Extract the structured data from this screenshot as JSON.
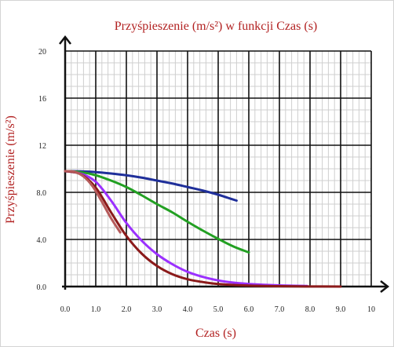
{
  "chart_data": {
    "type": "line",
    "title": "Przyśpieszenie (m/s²) w funkcji Czas (s)",
    "xlabel": "Czas (s)",
    "ylabel": "Przyśpieszenie (m/s²)",
    "xlim": [
      0,
      10
    ],
    "ylim": [
      0,
      20
    ],
    "x_ticks": [
      "0.0",
      "1.0",
      "2.0",
      "3.0",
      "4.0",
      "5.0",
      "6.0",
      "7.0",
      "8.0",
      "9.0",
      "10"
    ],
    "y_ticks": [
      "0.0",
      "4.0",
      "8.0",
      "12",
      "16",
      "20"
    ],
    "grid": true,
    "series": [
      {
        "color": "#1f2f9a",
        "x": [
          0,
          0.5,
          1,
          1.5,
          2,
          2.5,
          3,
          3.5,
          4,
          4.5,
          5,
          5.3,
          5.6
        ],
        "y": [
          9.8,
          9.78,
          9.72,
          9.6,
          9.45,
          9.25,
          9.0,
          8.75,
          8.45,
          8.15,
          7.8,
          7.55,
          7.3
        ]
      },
      {
        "color": "#22a022",
        "x": [
          0,
          0.5,
          1,
          1.5,
          2,
          2.5,
          3,
          3.5,
          4,
          4.5,
          5,
          5.5,
          6.0
        ],
        "y": [
          9.8,
          9.72,
          9.45,
          9.0,
          8.45,
          7.75,
          7.0,
          6.3,
          5.5,
          4.75,
          4.05,
          3.4,
          2.9
        ]
      },
      {
        "color": "#9b30ff",
        "x": [
          0,
          0.5,
          1,
          1.5,
          2,
          2.5,
          3,
          3.5,
          4,
          4.5,
          5,
          5.5,
          6,
          7,
          7.9
        ],
        "y": [
          9.8,
          9.6,
          8.9,
          7.3,
          5.4,
          3.9,
          2.75,
          1.9,
          1.25,
          0.82,
          0.52,
          0.33,
          0.22,
          0.1,
          0.05
        ]
      },
      {
        "color": "#8b1a1a",
        "x": [
          0,
          0.5,
          1,
          1.5,
          2,
          2.5,
          3,
          3.5,
          4,
          4.5,
          5,
          6,
          7,
          8,
          9.0
        ],
        "y": [
          9.8,
          9.55,
          8.4,
          6.3,
          4.3,
          2.8,
          1.75,
          1.05,
          0.62,
          0.38,
          0.22,
          0.08,
          0.03,
          0.01,
          0.0
        ]
      },
      {
        "color": "#b55a5a",
        "x": [
          0,
          0.3,
          0.6,
          0.9,
          1.2,
          1.5,
          1.8
        ],
        "y": [
          9.8,
          9.75,
          9.35,
          8.5,
          7.2,
          5.8,
          4.6
        ]
      }
    ]
  }
}
